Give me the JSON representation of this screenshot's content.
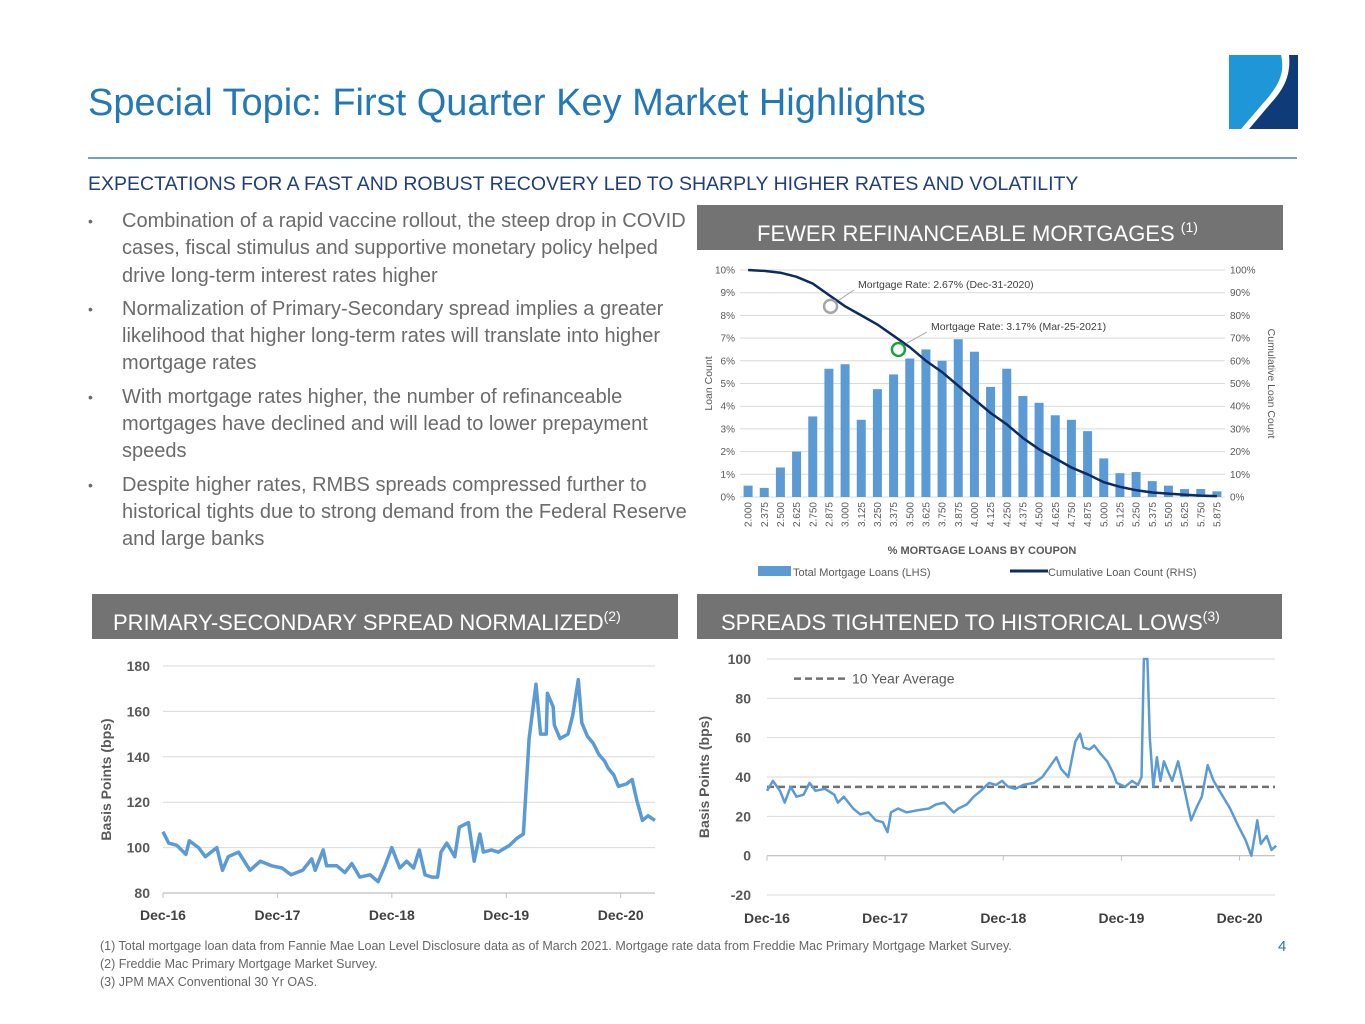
{
  "title": "Special Topic: First Quarter Key Market Highlights",
  "subtitle": "EXPECTATIONS FOR A FAST AND ROBUST RECOVERY LED TO SHARPLY HIGHER RATES AND VOLATILITY",
  "bullets": [
    "Combination of a rapid vaccine rollout, the steep drop in COVID cases, fiscal stimulus and supportive monetary policy helped drive long-term interest rates higher",
    "Normalization of Primary-Secondary spread implies a greater likelihood that higher long-term rates will translate into higher mortgage rates",
    "With mortgage rates higher, the number of refinanceable mortgages have declined and will lead to lower prepayment speeds",
    "Despite higher rates, RMBS spreads compressed further to historical tights due to strong demand from the Federal Reserve and large banks"
  ],
  "bullet_glyph": "•",
  "headers": {
    "refi": {
      "text": "FEWER REFINANCEABLE MORTGAGES ",
      "note": "(1)"
    },
    "spread": {
      "text": "PRIMARY-SECONDARY SPREAD NORMALIZED",
      "note": "(2)"
    },
    "oas": {
      "text": "SPREADS TIGHTENED TO HISTORICAL LOWS",
      "note": "(3)"
    }
  },
  "footnotes": [
    "(1)  Total mortgage loan data from Fannie Mae Loan Level Disclosure data as of March 2021. Mortgage rate data from Freddie Mac Primary Mortgage Market Survey.",
    "(2)  Freddie Mac Primary Mortgage Market Survey.",
    "(3)  JPM MAX Conventional 30 Yr OAS."
  ],
  "page_number": "4",
  "colors": {
    "title": "#2378b8",
    "bar": "#5b9bd5",
    "cum_line": "#0d2a63",
    "line": "#5b9bd5",
    "avg": "#707070",
    "gray_marker": "#a6a6a6",
    "green_marker": "#1aa33a",
    "logo_light": "#1e96d8",
    "logo_dark": "#0f3c78"
  },
  "chart_data": [
    {
      "type": "bar",
      "title": "",
      "xlabel": "% MORTGAGE LOANS BY COUPON",
      "ylabel": "Loan Count",
      "y2label": "Cumulative Loan Count",
      "categories": [
        "2.000",
        "2.375",
        "2.500",
        "2.625",
        "2.750",
        "2.875",
        "3.000",
        "3.125",
        "3.250",
        "3.375",
        "3.500",
        "3.625",
        "3.750",
        "3.875",
        "4.000",
        "4.125",
        "4.250",
        "4.375",
        "4.500",
        "4.625",
        "4.750",
        "4.875",
        "5.000",
        "5.125",
        "5.250",
        "5.375",
        "5.500",
        "5.625",
        "5.750",
        "5.875"
      ],
      "series": [
        {
          "name": "Total Mortgage Loans (LHS)",
          "axis": "left",
          "values": [
            0.5,
            0.4,
            1.3,
            2.0,
            3.55,
            5.65,
            5.85,
            3.4,
            4.75,
            5.4,
            6.1,
            6.5,
            6.0,
            6.95,
            6.4,
            4.85,
            5.65,
            4.45,
            4.15,
            3.6,
            3.4,
            2.9,
            1.7,
            1.05,
            1.1,
            0.7,
            0.5,
            0.35,
            0.35,
            0.25
          ]
        },
        {
          "name": "Cumulative Loan Count (RHS)",
          "axis": "right",
          "values": [
            100,
            99.6,
            98.8,
            97,
            94,
            89,
            84,
            80,
            76,
            71,
            66,
            60,
            55,
            49,
            43,
            37,
            32,
            26,
            21,
            17,
            13,
            10,
            6.5,
            4.5,
            3,
            2,
            1.5,
            1,
            0.6,
            0.4
          ]
        }
      ],
      "ylim": [
        0,
        10
      ],
      "yticks": [
        "0%",
        "1%",
        "2%",
        "3%",
        "4%",
        "5%",
        "6%",
        "7%",
        "8%",
        "9%",
        "10%"
      ],
      "y2lim": [
        0,
        100
      ],
      "y2ticks": [
        "0%",
        "10%",
        "20%",
        "30%",
        "40%",
        "50%",
        "60%",
        "70%",
        "80%",
        "90%",
        "100%"
      ],
      "annotations": [
        {
          "text": "Mortgage Rate: 2.67% (Dec-31-2020)",
          "category_index": 5.1,
          "value": 84,
          "marker": "gray"
        },
        {
          "text": "Mortgage Rate: 3.17% (Mar-25-2021)",
          "category_index": 9.3,
          "value": 65,
          "marker": "green"
        }
      ],
      "legend": "bottom",
      "grid": true
    },
    {
      "type": "line",
      "title": "PRIMARY-SECONDARY SPREAD NORMALIZED",
      "ylabel": "Basis Points (bps)",
      "x_unit": "years since Dec-16",
      "xticks": [
        "Dec-16",
        "Dec-17",
        "Dec-18",
        "Dec-19",
        "Dec-20"
      ],
      "xlim": [
        0,
        4.3
      ],
      "ylim": [
        80,
        180
      ],
      "yticks": [
        80,
        100,
        120,
        140,
        160,
        180
      ],
      "x": [
        0,
        0.05,
        0.12,
        0.2,
        0.23,
        0.31,
        0.37,
        0.47,
        0.52,
        0.57,
        0.66,
        0.76,
        0.85,
        0.95,
        1.04,
        1.12,
        1.22,
        1.3,
        1.33,
        1.4,
        1.43,
        1.52,
        1.59,
        1.65,
        1.72,
        1.81,
        1.88,
        1.94,
        2.0,
        2.07,
        2.13,
        2.19,
        2.24,
        2.29,
        2.35,
        2.4,
        2.43,
        2.48,
        2.55,
        2.59,
        2.67,
        2.72,
        2.77,
        2.8,
        2.87,
        2.93,
        3.03,
        3.09,
        3.15,
        3.2,
        3.26,
        3.3,
        3.35,
        3.36,
        3.41,
        3.42,
        3.47,
        3.54,
        3.58,
        3.63,
        3.66,
        3.71,
        3.76,
        3.81,
        3.86,
        3.89,
        3.94,
        3.98,
        4.05,
        4.1,
        4.14,
        4.19,
        4.24,
        4.3
      ],
      "y": [
        107,
        102,
        101,
        97,
        103,
        100,
        96,
        100,
        90,
        96,
        98,
        90,
        94,
        92,
        91,
        88,
        90,
        95,
        90,
        99,
        92,
        92,
        89,
        93,
        87,
        88,
        85,
        92,
        100,
        91,
        94,
        91,
        99,
        88,
        87,
        87,
        98,
        102,
        96,
        109,
        111,
        94,
        106,
        98,
        99,
        98,
        101,
        104,
        106,
        148,
        172,
        150,
        150,
        168,
        162,
        154,
        148,
        150,
        158,
        174,
        155,
        149,
        146,
        141,
        138,
        135,
        132,
        127,
        128,
        130,
        121,
        112,
        114,
        112
      ],
      "grid": true
    },
    {
      "type": "line",
      "title": "SPREADS TIGHTENED TO HISTORICAL LOWS",
      "ylabel": "Basis Points (bps)",
      "x_unit": "years since Dec-16",
      "xticks": [
        "Dec-16",
        "Dec-17",
        "Dec-18",
        "Dec-19",
        "Dec-20"
      ],
      "xlim": [
        0,
        4.3
      ],
      "ylim": [
        -20,
        100
      ],
      "yticks": [
        -20,
        0,
        20,
        40,
        60,
        80,
        100
      ],
      "average": {
        "label": "10 Year Average",
        "value": 35
      },
      "x": [
        0,
        0.05,
        0.11,
        0.15,
        0.2,
        0.25,
        0.31,
        0.36,
        0.41,
        0.49,
        0.57,
        0.6,
        0.65,
        0.73,
        0.79,
        0.86,
        0.92,
        0.98,
        1.02,
        1.05,
        1.11,
        1.18,
        1.27,
        1.37,
        1.43,
        1.5,
        1.58,
        1.62,
        1.69,
        1.75,
        1.81,
        1.88,
        1.94,
        1.99,
        2.04,
        2.1,
        2.17,
        2.26,
        2.33,
        2.39,
        2.45,
        2.49,
        2.55,
        2.61,
        2.65,
        2.68,
        2.73,
        2.77,
        2.82,
        2.88,
        2.93,
        2.96,
        3.03,
        3.09,
        3.14,
        3.17,
        3.19,
        3.22,
        3.24,
        3.27,
        3.3,
        3.33,
        3.36,
        3.4,
        3.43,
        3.48,
        3.54,
        3.59,
        3.64,
        3.68,
        3.73,
        3.78,
        3.83,
        3.88,
        3.92,
        3.99,
        4.05,
        4.1,
        4.15,
        4.18,
        4.23,
        4.27,
        4.31
      ],
      "y": [
        33,
        38,
        33,
        27,
        35,
        30,
        31,
        37,
        33,
        34,
        31,
        27,
        30,
        24,
        21,
        22,
        18,
        17,
        12,
        22,
        24,
        22,
        23,
        24,
        26,
        27,
        22,
        24,
        26,
        30,
        33,
        37,
        36,
        38,
        35,
        34,
        36,
        37,
        40,
        45,
        50,
        44,
        40,
        58,
        62,
        55,
        54,
        56,
        52,
        48,
        42,
        37,
        35,
        38,
        36,
        40,
        100,
        100,
        60,
        35,
        50,
        38,
        48,
        42,
        38,
        48,
        32,
        18,
        25,
        30,
        46,
        38,
        33,
        28,
        24,
        15,
        8,
        0,
        18,
        6,
        10,
        3,
        5
      ],
      "legend": "top-left",
      "grid": true
    }
  ]
}
